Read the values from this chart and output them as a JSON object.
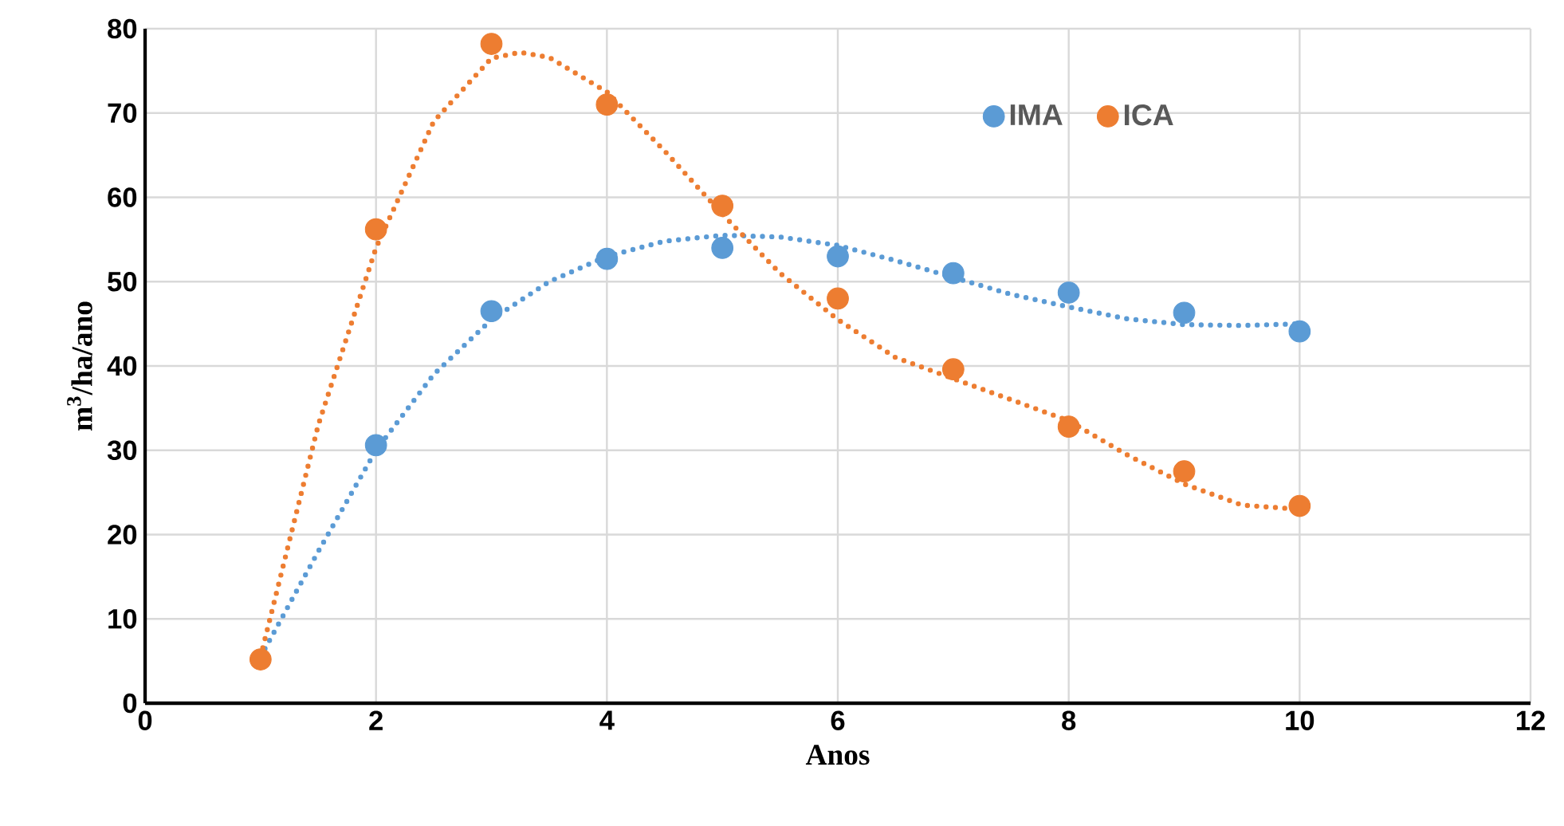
{
  "chart_data": {
    "type": "scatter",
    "xlabel": "Anos",
    "ylabel": "m$^{3}$/ha/ano",
    "xlim": [
      0,
      12
    ],
    "xticks": [
      0,
      2,
      4,
      6,
      8,
      10,
      12
    ],
    "ylim": [
      0,
      80
    ],
    "yticks": [
      0,
      10,
      20,
      30,
      40,
      50,
      60,
      70,
      80
    ],
    "grid": true,
    "legend": "top right",
    "marker": "circle",
    "series": [
      {
        "name": "IMA",
        "color": "#5b9bd5",
        "x": [
          2,
          3,
          4,
          5,
          6,
          7,
          8,
          9,
          10
        ],
        "values": [
          30.6,
          46.5,
          52.7,
          54,
          53,
          51,
          48.7,
          46.3,
          44.1
        ]
      },
      {
        "name": "ICA",
        "color": "#ed7d31",
        "x": [
          1,
          2,
          3,
          4,
          5,
          6,
          7,
          8,
          9,
          10
        ],
        "values": [
          5.2,
          56.2,
          78.2,
          71,
          59,
          48,
          39.6,
          32.8,
          27.5,
          23.4
        ]
      },
      {
        "type": "line",
        "color": "#5b9bd5",
        "line_style": "dotted",
        "marker": "none",
        "x": [
          1,
          1.5,
          2,
          2.5,
          3,
          3.5,
          4,
          4.5,
          5,
          5.5,
          6,
          6.5,
          7,
          7.5,
          8,
          8.5,
          9,
          9.5,
          10
        ],
        "values": [
          5.5,
          18,
          30,
          39,
          45.5,
          50,
          53,
          54.8,
          55.5,
          55.3,
          54.3,
          52.5,
          50.5,
          48.5,
          47,
          45.6,
          44.9,
          44.8,
          45
        ]
      },
      {
        "type": "line",
        "color": "#ed7d31",
        "line_style": "dotted",
        "marker": "none",
        "x": [
          1,
          1.5,
          2,
          2.5,
          3,
          3.25,
          3.5,
          4,
          4.5,
          5,
          5.5,
          6,
          6.5,
          7,
          7.5,
          8,
          8.5,
          9,
          9.5,
          10
        ],
        "values": [
          5.5,
          33,
          54,
          69,
          76.5,
          77.2,
          76.6,
          72.5,
          65.5,
          58,
          51,
          45.5,
          41,
          38.5,
          36,
          33.5,
          29.5,
          26,
          23.5,
          23
        ]
      }
    ]
  }
}
